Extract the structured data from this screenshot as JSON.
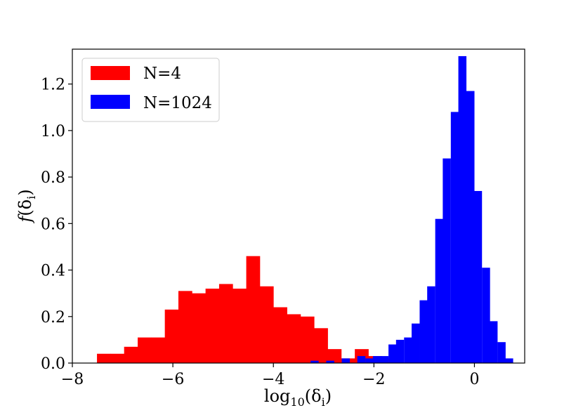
{
  "chart_data": {
    "type": "bar",
    "xlabel": "log10(δi)",
    "ylabel": "f(δi)",
    "xlim": [
      -8.0,
      1.0
    ],
    "ylim": [
      0.0,
      1.35
    ],
    "xticks": [
      -8,
      -6,
      -4,
      -2,
      0
    ],
    "yticks": [
      0.0,
      0.2,
      0.4,
      0.6,
      0.8,
      1.0,
      1.2
    ],
    "xtick_labels": [
      "−8",
      "−6",
      "−4",
      "−2",
      "0"
    ],
    "ytick_labels": [
      "0.0",
      "0.2",
      "0.4",
      "0.6",
      "0.8",
      "1.0",
      "1.2"
    ],
    "legend_position": "upper-left",
    "grid": false,
    "series": [
      {
        "name": "N=4",
        "color": "#ff0000",
        "bin_width": 0.27,
        "bins": [
          [
            -7.51,
            0.04
          ],
          [
            -7.24,
            0.04
          ],
          [
            -6.97,
            0.07
          ],
          [
            -6.7,
            0.11
          ],
          [
            -6.43,
            0.11
          ],
          [
            -6.16,
            0.23
          ],
          [
            -5.89,
            0.31
          ],
          [
            -5.62,
            0.3
          ],
          [
            -5.35,
            0.32
          ],
          [
            -5.08,
            0.34
          ],
          [
            -4.81,
            0.32
          ],
          [
            -4.54,
            0.46
          ],
          [
            -4.27,
            0.33
          ],
          [
            -4.0,
            0.24
          ],
          [
            -3.73,
            0.21
          ],
          [
            -3.46,
            0.2
          ],
          [
            -3.19,
            0.15
          ],
          [
            -2.92,
            0.06
          ],
          [
            -2.65,
            0.02
          ],
          [
            -2.38,
            0.06
          ],
          [
            -2.11,
            0.03
          ],
          [
            -1.84,
            0.02
          ]
        ]
      },
      {
        "name": "N=1024",
        "color": "#0000ff",
        "bin_width": 0.155,
        "bins": [
          [
            -3.26,
            0.01
          ],
          [
            -2.95,
            0.01
          ],
          [
            -2.64,
            0.02
          ],
          [
            -2.33,
            0.03
          ],
          [
            -2.17,
            0.02
          ],
          [
            -2.02,
            0.03
          ],
          [
            -1.87,
            0.03
          ],
          [
            -1.71,
            0.08
          ],
          [
            -1.56,
            0.1
          ],
          [
            -1.4,
            0.11
          ],
          [
            -1.25,
            0.17
          ],
          [
            -1.09,
            0.27
          ],
          [
            -0.94,
            0.33
          ],
          [
            -0.78,
            0.62
          ],
          [
            -0.63,
            0.88
          ],
          [
            -0.47,
            1.08
          ],
          [
            -0.32,
            1.32
          ],
          [
            -0.16,
            1.17
          ],
          [
            -0.01,
            0.74
          ],
          [
            0.15,
            0.41
          ],
          [
            0.3,
            0.18
          ],
          [
            0.46,
            0.09
          ],
          [
            0.61,
            0.02
          ]
        ]
      }
    ]
  }
}
